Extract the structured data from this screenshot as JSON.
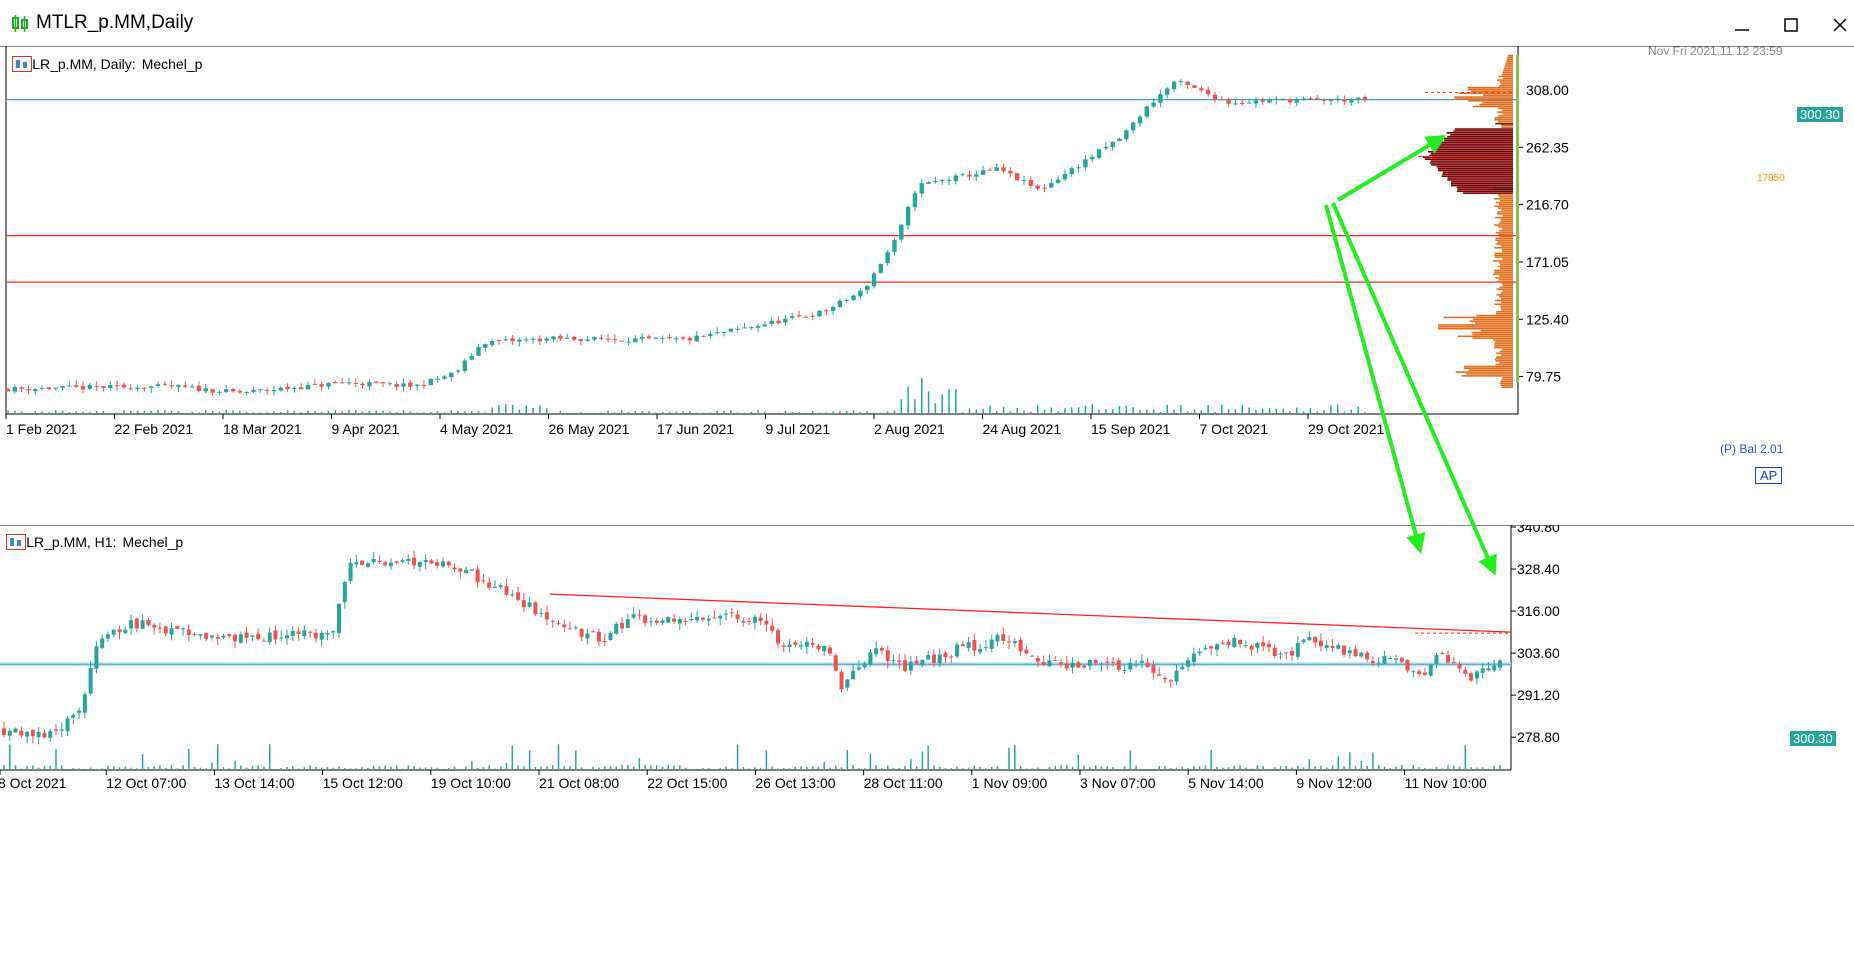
{
  "window": {
    "title": "MTLR_p.MM,Daily"
  },
  "top_chart": {
    "label_symbol": "MTLR_p.MM, Daily:",
    "label_name": "Mechel_p",
    "date_stamp": "Nov Fri 2021.11.12 23:59",
    "price_tag": "300.30",
    "poc_label": "17950",
    "indicator_label": "(P) Bal 2.01",
    "ap_badge": "AP",
    "top_tick_label": "308.00"
  },
  "bottom_chart": {
    "label_symbol": "MTLR_p.MM, H1:",
    "label_name": "Mechel_p",
    "price_tag": "300.30"
  },
  "colors": {
    "bull": "#26a69a",
    "bear": "#ef5350",
    "red_line": "#ff2020",
    "blue_line": "#3a9fd8",
    "profile_orange": "#e0701f",
    "profile_poc": "#7a0000",
    "arrow_green": "#22ee22"
  },
  "chart_data": [
    {
      "type": "candlestick",
      "timeframe": "Daily",
      "symbol": "MTLR_p.MM",
      "x_ticks": [
        "1 Feb 2021",
        "22 Feb 2021",
        "18 Mar 2021",
        "9 Apr 2021",
        "4 May 2021",
        "26 May 2021",
        "17 Jun 2021",
        "9 Jul 2021",
        "2 Aug 2021",
        "24 Aug 2021",
        "15 Sep 2021",
        "7 Oct 2021",
        "29 Oct 2021"
      ],
      "y_ticks": [
        "79.75",
        "125.40",
        "171.05",
        "216.70",
        "262.35"
      ],
      "ylim": [
        50,
        343
      ],
      "current_price": 300.3,
      "horizontal_lines": [
        {
          "price": 300.3,
          "color": "blue"
        },
        {
          "price": 192.0,
          "color": "red"
        },
        {
          "price": 155.0,
          "color": "red"
        }
      ],
      "profile_poc_volume": 17950
    },
    {
      "type": "candlestick",
      "timeframe": "H1",
      "symbol": "MTLR_p.MM",
      "x_ticks": [
        "8 Oct 2021",
        "12 Oct 07:00",
        "13 Oct 14:00",
        "15 Oct 12:00",
        "19 Oct 10:00",
        "21 Oct 08:00",
        "22 Oct 15:00",
        "26 Oct 13:00",
        "28 Oct 11:00",
        "1 Nov 09:00",
        "3 Nov 07:00",
        "5 Nov 14:00",
        "9 Nov 12:00",
        "11 Nov 10:00"
      ],
      "y_ticks": [
        "340.80",
        "328.40",
        "316.00",
        "303.60",
        "291.20",
        "278.80"
      ],
      "ylim": [
        270.3,
        340.8
      ],
      "current_price": 300.3,
      "trendline": {
        "from_price": 321.0,
        "to_price": 309.8,
        "color": "red"
      }
    }
  ]
}
